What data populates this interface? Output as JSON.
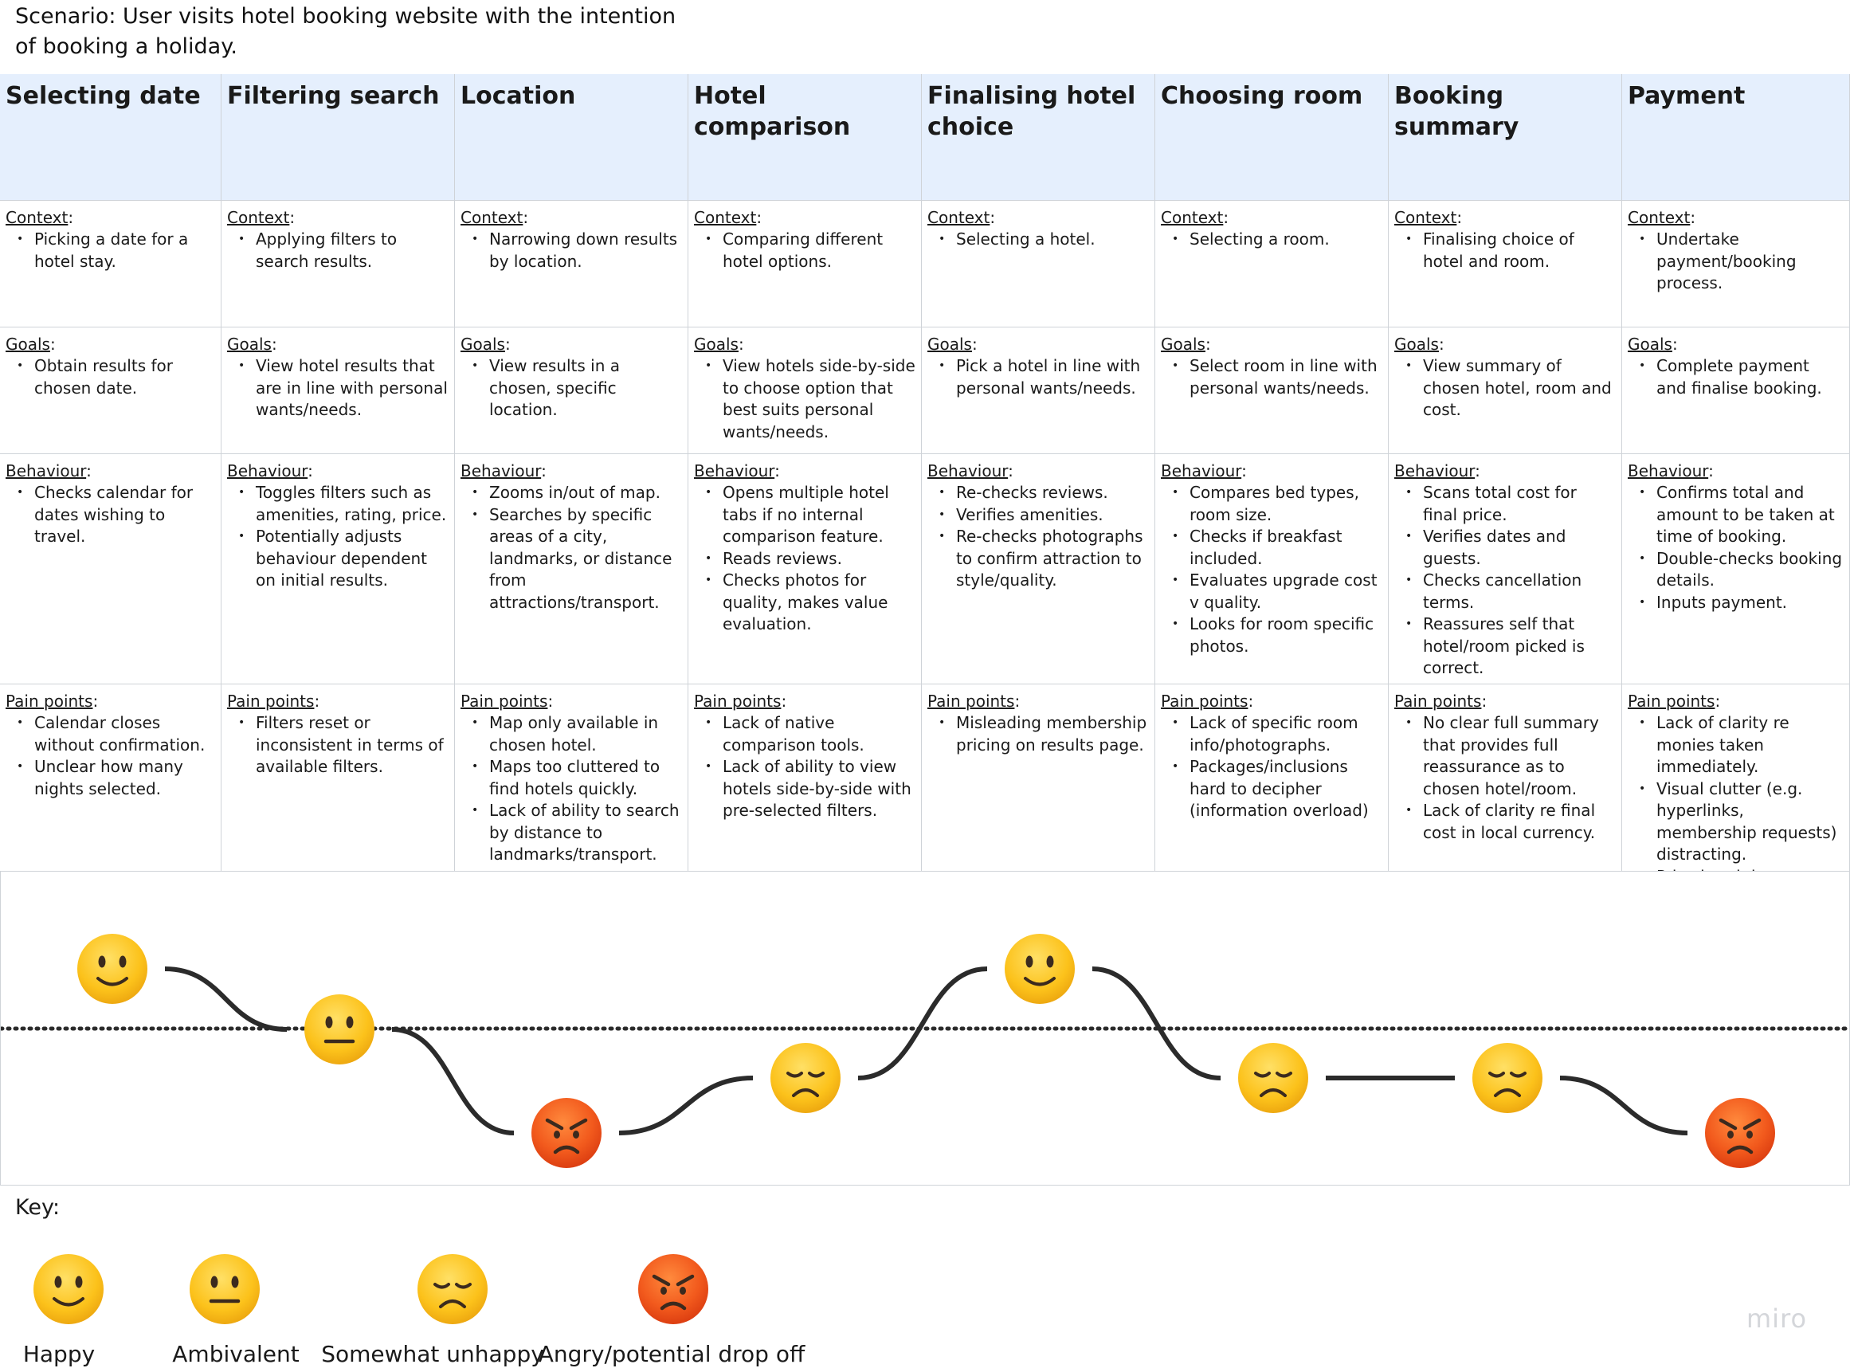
{
  "scenario": "Scenario: User visits hotel booking website with the intention of booking a holiday.",
  "section_labels": {
    "context": "Context",
    "goals": "Goals",
    "behaviour": "Behaviour",
    "pain_points": "Pain points"
  },
  "stages": [
    {
      "title": "Selecting date",
      "context": [
        "Picking a date for a hotel stay."
      ],
      "goals": [
        "Obtain results for chosen date."
      ],
      "behaviour": [
        "Checks calendar for dates wishing to travel."
      ],
      "pain_points": [
        "Calendar closes without confirmation.",
        "Unclear how many nights selected."
      ],
      "emotion": "happy"
    },
    {
      "title": "Filtering search",
      "context": [
        "Applying filters to search results."
      ],
      "goals": [
        "View hotel results that are in line with personal wants/needs."
      ],
      "behaviour": [
        "Toggles filters such as amenities, rating, price.",
        "Potentially adjusts behaviour dependent on initial results."
      ],
      "pain_points": [
        "Filters reset or inconsistent in terms of available filters."
      ],
      "emotion": "ambivalent"
    },
    {
      "title": "Location",
      "context": [
        "Narrowing down results by location."
      ],
      "goals": [
        "View results in a chosen, specific location."
      ],
      "behaviour": [
        "Zooms in/out of map.",
        "Searches by specific areas of a city, landmarks, or distance from attractions/transport."
      ],
      "pain_points": [
        "Map only available in chosen hotel.",
        "Maps too cluttered to find hotels quickly.",
        "Lack of ability to search by distance to landmarks/transport."
      ],
      "emotion": "angry"
    },
    {
      "title": "Hotel comparison",
      "context": [
        "Comparing different hotel options."
      ],
      "goals": [
        "View hotels side-by-side to choose option that best suits personal wants/needs."
      ],
      "behaviour": [
        "Opens multiple hotel tabs if no internal comparison feature.",
        "Reads reviews.",
        "Checks photos for quality, makes value evaluation."
      ],
      "pain_points": [
        "Lack of native comparison tools.",
        "Lack of ability to view hotels side-by-side with pre-selected filters."
      ],
      "emotion": "unhappy"
    },
    {
      "title": "Finalising hotel choice",
      "context": [
        "Selecting a hotel."
      ],
      "goals": [
        "Pick a hotel in line with personal wants/needs."
      ],
      "behaviour": [
        "Re-checks reviews.",
        "Verifies amenities.",
        "Re-checks photographs to confirm attraction to style/quality."
      ],
      "pain_points": [
        "Misleading membership pricing on results page."
      ],
      "emotion": "happy"
    },
    {
      "title": "Choosing room",
      "context": [
        "Selecting a room."
      ],
      "goals": [
        "Select room in line with personal wants/needs."
      ],
      "behaviour": [
        "Compares bed types, room size.",
        "Checks if breakfast included.",
        "Evaluates upgrade cost v quality.",
        "Looks for room specific photos."
      ],
      "pain_points": [
        "Lack of specific room info/photographs.",
        "Packages/inclusions hard to decipher (information overload)"
      ],
      "emotion": "unhappy"
    },
    {
      "title": "Booking summary",
      "context": [
        "Finalising choice of hotel and room."
      ],
      "goals": [
        "View summary of chosen hotel, room and cost."
      ],
      "behaviour": [
        "Scans total cost for final price.",
        "Verifies dates and guests.",
        "Checks cancellation terms.",
        "Reassures self that hotel/room picked is correct."
      ],
      "pain_points": [
        "No clear full summary that provides full reassurance as to chosen hotel/room.",
        "Lack of clarity re final cost in local currency."
      ],
      "emotion": "unhappy"
    },
    {
      "title": "Payment",
      "context": [
        "Undertake payment/booking process."
      ],
      "goals": [
        "Complete payment and finalise booking."
      ],
      "behaviour": [
        "Confirms total and amount to be taken at time of booking.",
        "Double-checks booking details.",
        "Inputs payment."
      ],
      "pain_points": [
        "Lack of clarity re monies taken immediately.",
        "Visual clutter (e.g. hyperlinks, membership requests) distracting.",
        "Price breakdown hidden."
      ],
      "emotion": "angry"
    }
  ],
  "key": {
    "title": "Key:",
    "items": [
      {
        "emotion": "happy",
        "label": "Happy"
      },
      {
        "emotion": "ambivalent",
        "label": "Ambivalent"
      },
      {
        "emotion": "unhappy",
        "label": "Somewhat unhappy"
      },
      {
        "emotion": "angry",
        "label": "Angry/potential drop off"
      }
    ]
  },
  "watermark": "miro",
  "colors": {
    "header_bg": "#e5effd",
    "emoji_yellow": "#fcc21b",
    "emoji_red": "#f05a1c",
    "curve": "#2b2b2b"
  }
}
